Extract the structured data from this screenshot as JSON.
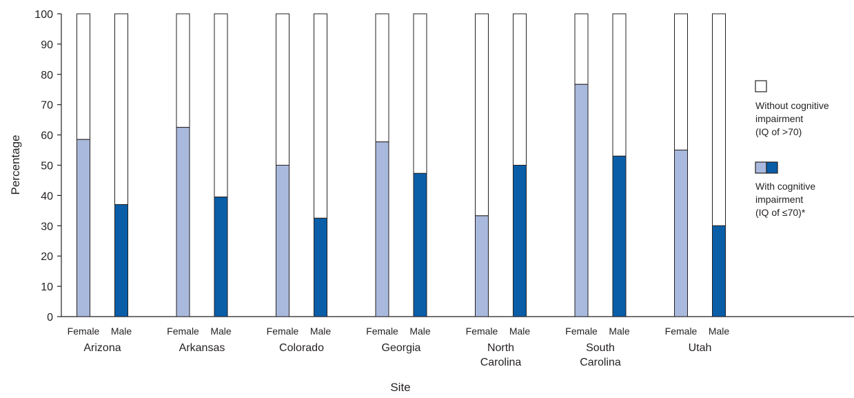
{
  "chart_data": {
    "type": "bar",
    "stacked": true,
    "xlabel": "Site",
    "ylabel": "Percentage",
    "ylim": [
      0,
      100
    ],
    "yticks": [
      0,
      10,
      20,
      30,
      40,
      50,
      60,
      70,
      80,
      90,
      100
    ],
    "grid": false,
    "legend_position": "right",
    "sites": [
      {
        "name_lines": [
          "Arizona"
        ],
        "bars": [
          {
            "sex": "Female",
            "with_ci": 58.5
          },
          {
            "sex": "Male",
            "with_ci": 37
          }
        ]
      },
      {
        "name_lines": [
          "Arkansas"
        ],
        "bars": [
          {
            "sex": "Female",
            "with_ci": 62.5
          },
          {
            "sex": "Male",
            "with_ci": 39.5
          }
        ]
      },
      {
        "name_lines": [
          "Colorado"
        ],
        "bars": [
          {
            "sex": "Female",
            "with_ci": 50
          },
          {
            "sex": "Male",
            "with_ci": 32.5
          }
        ]
      },
      {
        "name_lines": [
          "Georgia"
        ],
        "bars": [
          {
            "sex": "Female",
            "with_ci": 57.7
          },
          {
            "sex": "Male",
            "with_ci": 47.3
          }
        ]
      },
      {
        "name_lines": [
          "North",
          "Carolina"
        ],
        "bars": [
          {
            "sex": "Female",
            "with_ci": 33.3
          },
          {
            "sex": "Male",
            "with_ci": 50
          }
        ]
      },
      {
        "name_lines": [
          "South",
          "Carolina"
        ],
        "bars": [
          {
            "sex": "Female",
            "with_ci": 76.7
          },
          {
            "sex": "Male",
            "with_ci": 53
          }
        ]
      },
      {
        "name_lines": [
          "Utah"
        ],
        "bars": [
          {
            "sex": "Female",
            "with_ci": 55
          },
          {
            "sex": "Male",
            "with_ci": 30
          }
        ]
      }
    ],
    "legend": [
      {
        "key": "without",
        "lines": [
          "Without cognitive",
          "impairment",
          "(IQ of >70)"
        ]
      },
      {
        "key": "with",
        "lines": [
          "With cognitive",
          "impairment",
          "(IQ of ≤70)*"
        ]
      }
    ],
    "colors": {
      "female_with": "#a9b9dd",
      "male_with": "#0a5ea8",
      "without": "#ffffff",
      "outline": "#231f20"
    }
  }
}
